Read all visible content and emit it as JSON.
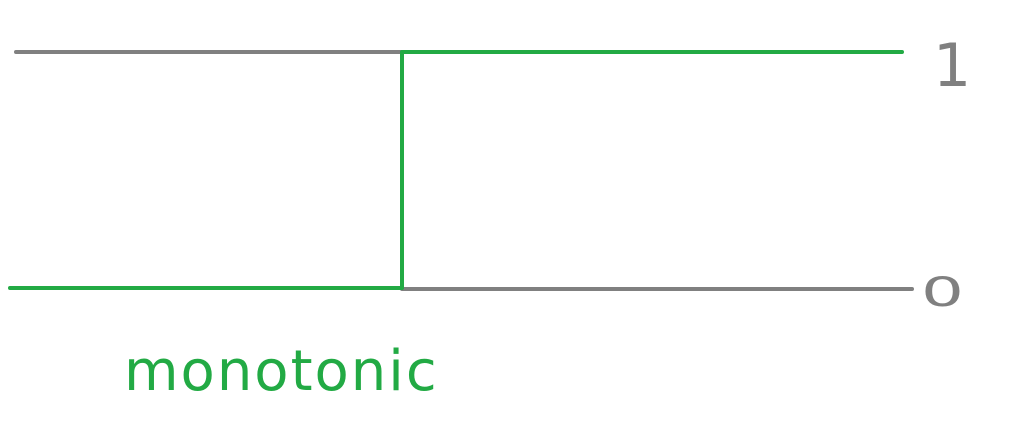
{
  "diagram": {
    "high_level_label": "1",
    "low_level_label": "0",
    "caption": "monotonic",
    "colors": {
      "rail": "#808080",
      "signal": "#22aa44",
      "background": "#ffffff"
    }
  }
}
